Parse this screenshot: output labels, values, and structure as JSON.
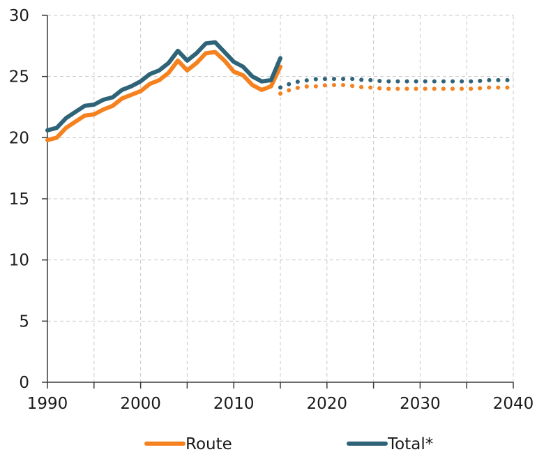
{
  "chart_data": {
    "type": "line",
    "title": "",
    "xlabel": "",
    "ylabel": "",
    "xlim": [
      1990,
      2040
    ],
    "ylim": [
      0,
      30
    ],
    "x_ticks": [
      1990,
      2000,
      2010,
      2020,
      2030,
      2040
    ],
    "y_ticks": [
      0,
      5,
      10,
      15,
      20,
      25,
      30
    ],
    "x_tick_labels": [
      "1990",
      "2000",
      "2010",
      "2020",
      "2030",
      "2040"
    ],
    "y_tick_labels": [
      "0",
      "5",
      "10",
      "15",
      "20",
      "25",
      "30"
    ],
    "grid": true,
    "legend_position": "bottom",
    "series": [
      {
        "name": "Route",
        "color": "#f5821f",
        "historical": {
          "x": [
            1990,
            1991,
            1992,
            1993,
            1994,
            1995,
            1996,
            1997,
            1998,
            1999,
            2000,
            2001,
            2002,
            2003,
            2004,
            2005,
            2006,
            2007,
            2008,
            2009,
            2010,
            2011,
            2012,
            2013,
            2014,
            2015
          ],
          "y": [
            19.8,
            20.0,
            20.8,
            21.3,
            21.8,
            21.9,
            22.3,
            22.6,
            23.2,
            23.5,
            23.8,
            24.4,
            24.7,
            25.3,
            26.3,
            25.5,
            26.1,
            26.9,
            27.0,
            26.3,
            25.4,
            25.1,
            24.3,
            23.9,
            24.2,
            25.8
          ]
        },
        "projection": {
          "x": [
            2015,
            2016,
            2017,
            2018,
            2019,
            2020,
            2021,
            2022,
            2023,
            2024,
            2025,
            2026,
            2027,
            2028,
            2029,
            2030,
            2031,
            2032,
            2033,
            2034,
            2035,
            2036,
            2037,
            2038,
            2039,
            2040
          ],
          "y": [
            23.6,
            23.9,
            24.1,
            24.2,
            24.2,
            24.3,
            24.3,
            24.3,
            24.2,
            24.1,
            24.1,
            24.0,
            24.0,
            24.0,
            24.0,
            24.0,
            24.0,
            24.0,
            24.0,
            24.0,
            24.0,
            24.0,
            24.1,
            24.1,
            24.1,
            24.1
          ]
        }
      },
      {
        "name": "Total*",
        "color": "#2e6378",
        "historical": {
          "x": [
            1990,
            1991,
            1992,
            1993,
            1994,
            1995,
            1996,
            1997,
            1998,
            1999,
            2000,
            2001,
            2002,
            2003,
            2004,
            2005,
            2006,
            2007,
            2008,
            2009,
            2010,
            2011,
            2012,
            2013,
            2014,
            2015
          ],
          "y": [
            20.6,
            20.8,
            21.6,
            22.1,
            22.6,
            22.7,
            23.1,
            23.3,
            23.9,
            24.2,
            24.6,
            25.2,
            25.5,
            26.1,
            27.1,
            26.3,
            26.9,
            27.7,
            27.8,
            27.0,
            26.2,
            25.8,
            25.0,
            24.6,
            24.7,
            26.5
          ]
        },
        "projection": {
          "x": [
            2015,
            2016,
            2017,
            2018,
            2019,
            2020,
            2021,
            2022,
            2023,
            2024,
            2025,
            2026,
            2027,
            2028,
            2029,
            2030,
            2031,
            2032,
            2033,
            2034,
            2035,
            2036,
            2037,
            2038,
            2039,
            2040
          ],
          "y": [
            24.1,
            24.4,
            24.6,
            24.7,
            24.8,
            24.8,
            24.8,
            24.8,
            24.8,
            24.7,
            24.7,
            24.6,
            24.6,
            24.6,
            24.6,
            24.6,
            24.6,
            24.6,
            24.6,
            24.6,
            24.6,
            24.6,
            24.7,
            24.7,
            24.7,
            24.7
          ]
        }
      }
    ]
  }
}
